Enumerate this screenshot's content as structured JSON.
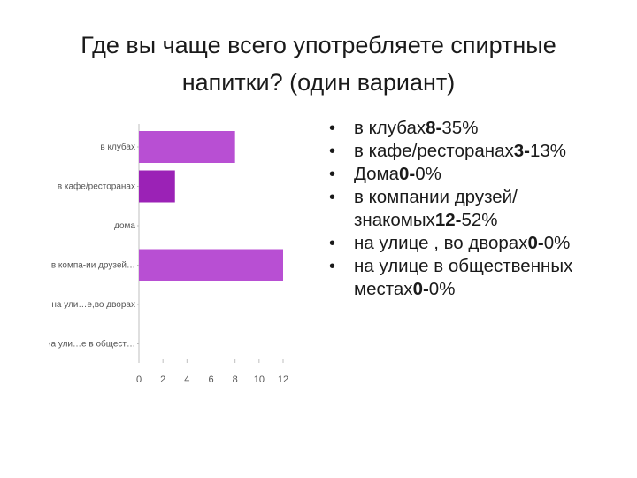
{
  "title": {
    "line1": "Где вы чаще всего употребляете спиртные",
    "line2": "напитки? (один вариант)"
  },
  "chart_data": {
    "type": "bar",
    "orientation": "horizontal",
    "categories": [
      "в клубах",
      "в кафе/ресторанах",
      "дома",
      "в компа-ии друзей…",
      "на ули…е,во дворах",
      "на ули…е в общест…"
    ],
    "values": [
      8,
      3,
      0,
      12,
      0,
      0
    ],
    "xlim": [
      0,
      12
    ],
    "xticks": [
      "0",
      "2",
      "4",
      "6",
      "8",
      "10",
      "12"
    ],
    "colors": [
      "#b84fd3",
      "#9b22b6",
      "#9b22b6",
      "#b84fd3",
      "#b84fd3",
      "#b84fd3"
    ],
    "grid": false,
    "legend": "none"
  },
  "bullets": [
    {
      "text": "в клубах",
      "bold": "8-",
      "rest": "35%"
    },
    {
      "text": "в кафе/ресторанах",
      "bold": "3-",
      "rest": "13%"
    },
    {
      "text": "Дома",
      "bold": "0-",
      "rest": "0%"
    },
    {
      "text": "в компании друзей/знакомых",
      "bold": "12-",
      "rest": "52%"
    },
    {
      "text": "на улице , во дворах",
      "bold": "0-",
      "rest": "0%"
    },
    {
      "text": "на улице в общественных местах",
      "bold": "0-",
      "rest": "0%"
    }
  ]
}
